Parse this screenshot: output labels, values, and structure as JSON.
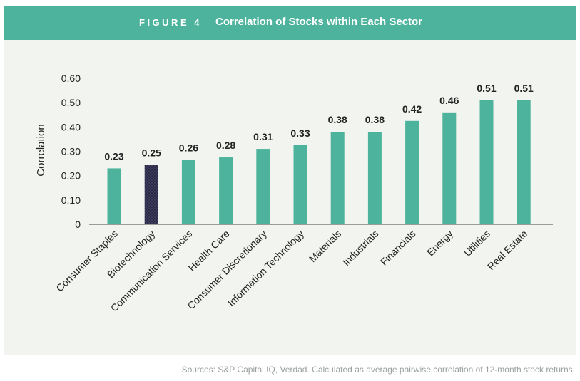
{
  "header": {
    "figure_label": "FIGURE 4",
    "title": "Correlation of Stocks within Each Sector"
  },
  "colors": {
    "header": "#4db39c",
    "bar": "#4db39c",
    "highlight": "#2a2845",
    "panel": "#f2f4ef"
  },
  "chart_data": {
    "type": "bar",
    "title": "Correlation of Stocks within Each Sector",
    "xlabel": "",
    "ylabel": "Correlation",
    "ylim": [
      0,
      0.6
    ],
    "yticks": [
      "0",
      "0.10",
      "0.20",
      "0.30",
      "0.40",
      "0.50",
      "0.60"
    ],
    "categories": [
      "Consumer Staples",
      "Biotechnology",
      "Communication Services",
      "Health Care",
      "Consumer Discretionary",
      "Information Technology",
      "Materials",
      "Industrials",
      "Financials",
      "Energy",
      "Utilities",
      "Real Estate"
    ],
    "values": [
      0.23,
      0.245,
      0.265,
      0.275,
      0.31,
      0.325,
      0.38,
      0.38,
      0.425,
      0.46,
      0.51,
      0.51
    ],
    "data_labels": [
      "0.23",
      "0.25",
      "0.26",
      "0.28",
      "0.31",
      "0.33",
      "0.38",
      "0.38",
      "0.42",
      "0.46",
      "0.51",
      "0.51"
    ],
    "highlight_category": "Biotechnology",
    "grid": false,
    "legend": "none"
  },
  "source": "Sources: S&P Capital IQ, Verdad. Calculated as average pairwise correlation of 12-month stock returns."
}
